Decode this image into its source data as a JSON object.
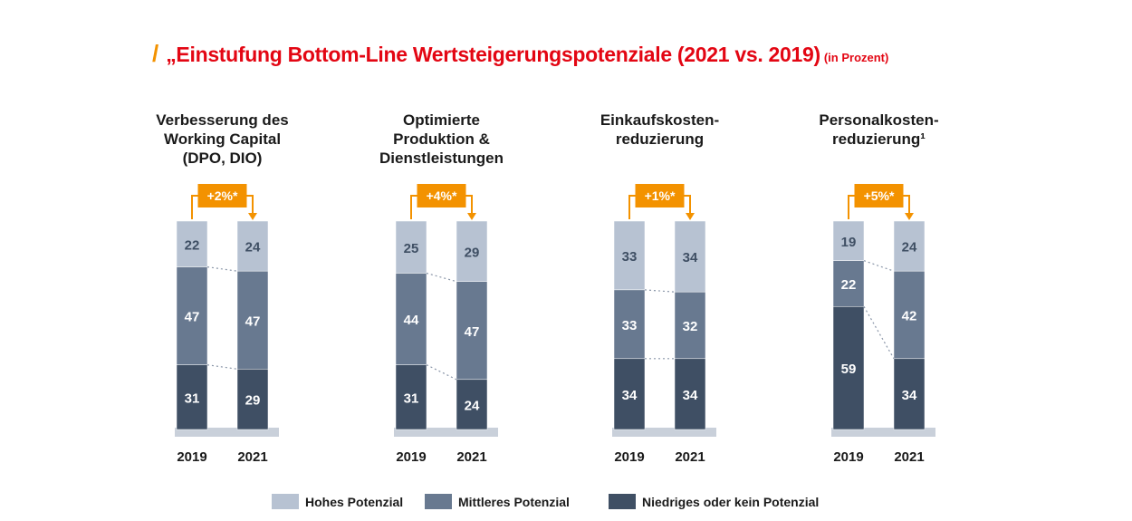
{
  "title": {
    "slash": "/",
    "main": "„Einstufung Bottom-Line Wertsteigerungspotenziale (2021 vs. 2019)",
    "unit": "(in Prozent)"
  },
  "colors": {
    "title": "#e30613",
    "accent": "#f39200",
    "high": "#b7c2d2",
    "medium": "#687990",
    "low": "#3f4f64",
    "base": "#c9d0da",
    "value_dark": "#3f4f64",
    "value_light": "#ffffff"
  },
  "chart_data": {
    "type": "bar",
    "stacked": true,
    "unit": "Prozent",
    "legend": [
      "Hohes Potenzial",
      "Mittleres Potenzial",
      "Niedriges oder kein Potenzial"
    ],
    "legend_position": "bottom",
    "panels": [
      {
        "title_lines": [
          "Verbesserung des",
          "Working Capital",
          "(DPO, DIO)"
        ],
        "change_label": "+2%*",
        "categories": [
          "2019",
          "2021"
        ],
        "series": [
          {
            "name": "Hohes Potenzial",
            "values": [
              22,
              24
            ]
          },
          {
            "name": "Mittleres Potenzial",
            "values": [
              47,
              47
            ]
          },
          {
            "name": "Niedriges oder kein Potenzial",
            "values": [
              31,
              29
            ]
          }
        ]
      },
      {
        "title_lines": [
          "Optimierte",
          "Produktion &",
          "Dienstleistungen"
        ],
        "change_label": "+4%*",
        "categories": [
          "2019",
          "2021"
        ],
        "series": [
          {
            "name": "Hohes Potenzial",
            "values": [
              25,
              29
            ]
          },
          {
            "name": "Mittleres Potenzial",
            "values": [
              44,
              47
            ]
          },
          {
            "name": "Niedriges oder kein Potenzial",
            "values": [
              31,
              24
            ]
          }
        ]
      },
      {
        "title_lines": [
          "Einkaufskosten-",
          "reduzierung"
        ],
        "change_label": "+1%*",
        "categories": [
          "2019",
          "2021"
        ],
        "series": [
          {
            "name": "Hohes Potenzial",
            "values": [
              33,
              34
            ]
          },
          {
            "name": "Mittleres Potenzial",
            "values": [
              33,
              32
            ]
          },
          {
            "name": "Niedriges oder kein Potenzial",
            "values": [
              34,
              34
            ]
          }
        ]
      },
      {
        "title_lines": [
          "Personalkosten-",
          "reduzierung¹"
        ],
        "change_label": "+5%*",
        "categories": [
          "2019",
          "2021"
        ],
        "series": [
          {
            "name": "Hohes Potenzial",
            "values": [
              19,
              24
            ]
          },
          {
            "name": "Mittleres Potenzial",
            "values": [
              22,
              42
            ]
          },
          {
            "name": "Niedriges oder kein Potenzial",
            "values": [
              59,
              34
            ]
          }
        ]
      }
    ]
  }
}
